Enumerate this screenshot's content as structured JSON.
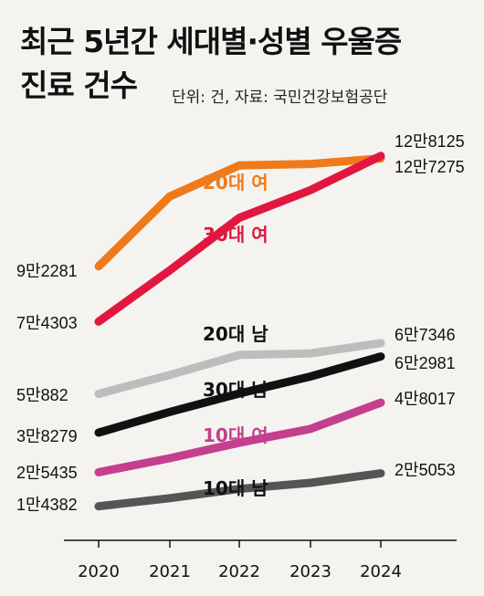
{
  "title_line1": "최근 5년간 세대별·성별 우울증",
  "title_line2": "진료 건수",
  "unit": "단위: 건, 자료: 국민건강보험공단",
  "chart_data": {
    "type": "line",
    "x": [
      "2020",
      "2021",
      "2022",
      "2023",
      "2024"
    ],
    "ylim": [
      0,
      135000
    ],
    "series": [
      {
        "name": "20대 여",
        "color": "#ef7a1a",
        "values": [
          92281,
          115000,
          125000,
          125500,
          127275
        ],
        "start_label": "9만2281",
        "end_label": "12만7275"
      },
      {
        "name": "30대 여",
        "color": "#e0173f",
        "values": [
          74303,
          91000,
          108000,
          117000,
          128125
        ],
        "start_label": "7만4303",
        "end_label": "12만8125"
      },
      {
        "name": "20대 남",
        "color": "#bdbdbd",
        "values": [
          50882,
          57000,
          63500,
          64000,
          67346
        ],
        "start_label": "5만882",
        "end_label": "6만7346"
      },
      {
        "name": "30대 남",
        "color": "#111111",
        "values": [
          38279,
          45000,
          51000,
          56500,
          62981
        ],
        "start_label": "3만8279",
        "end_label": "6만2981"
      },
      {
        "name": "10대 여",
        "color": "#c43f8e",
        "values": [
          25435,
          30000,
          35000,
          39500,
          48017
        ],
        "start_label": "2만5435",
        "end_label": "4만8017"
      },
      {
        "name": "10대 남",
        "color": "#555555",
        "values": [
          14382,
          17000,
          20000,
          22000,
          25053
        ],
        "start_label": "1만4382",
        "end_label": "2만5053"
      }
    ]
  }
}
